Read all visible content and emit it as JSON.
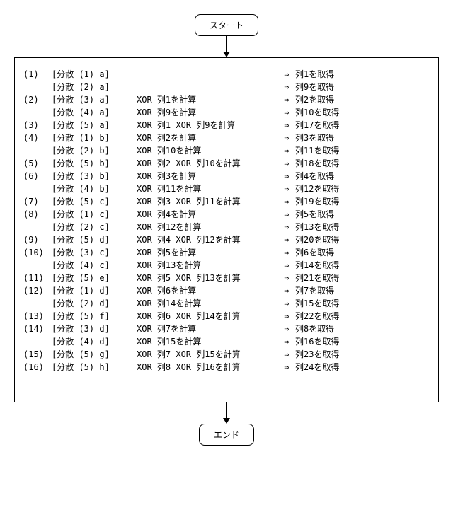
{
  "flowchart": {
    "start_label": "スタート",
    "end_label": "エンド",
    "arrow_glyph": "⇒"
  },
  "rows": [
    {
      "step": "(1)",
      "src": "[分散 (1) a]",
      "op": "",
      "res": "列1を取得"
    },
    {
      "step": "",
      "src": "[分散 (2) a]",
      "op": "",
      "res": "列9を取得"
    },
    {
      "step": "(2)",
      "src": "[分散 (3) a]",
      "op": "XOR 列1を計算",
      "res": "列2を取得"
    },
    {
      "step": "",
      "src": "[分散 (4) a]",
      "op": "XOR 列9を計算",
      "res": "列10を取得"
    },
    {
      "step": "(3)",
      "src": "[分散 (5) a]",
      "op": "XOR 列1 XOR 列9を計算",
      "res": "列17を取得"
    },
    {
      "step": "(4)",
      "src": "[分散 (1) b]",
      "op": "XOR 列2を計算",
      "res": "列3を取得"
    },
    {
      "step": "",
      "src": "[分散 (2) b]",
      "op": "XOR 列10を計算",
      "res": "列11を取得"
    },
    {
      "step": "(5)",
      "src": "[分散 (5) b]",
      "op": "XOR 列2 XOR 列10を計算",
      "res": "列18を取得"
    },
    {
      "step": "(6)",
      "src": "[分散 (3) b]",
      "op": "XOR 列3を計算",
      "res": "列4を取得"
    },
    {
      "step": "",
      "src": "[分散 (4) b]",
      "op": "XOR 列11を計算",
      "res": "列12を取得"
    },
    {
      "step": "(7)",
      "src": "[分散 (5) c]",
      "op": "XOR 列3 XOR 列11を計算",
      "res": "列19を取得"
    },
    {
      "step": "(8)",
      "src": "[分散 (1) c]",
      "op": "XOR 列4を計算",
      "res": "列5を取得"
    },
    {
      "step": "",
      "src": "[分散 (2) c]",
      "op": "XOR 列12を計算",
      "res": "列13を取得"
    },
    {
      "step": "(9)",
      "src": "[分散 (5) d]",
      "op": "XOR 列4 XOR 列12を計算",
      "res": "列20を取得"
    },
    {
      "step": "(10)",
      "src": "[分散 (3) c]",
      "op": "XOR 列5を計算",
      "res": "列6を取得"
    },
    {
      "step": "",
      "src": "[分散 (4) c]",
      "op": "XOR 列13を計算",
      "res": "列14を取得"
    },
    {
      "step": "(11)",
      "src": "[分散 (5) e]",
      "op": "XOR 列5 XOR 列13を計算",
      "res": "列21を取得"
    },
    {
      "step": "(12)",
      "src": "[分散 (1) d]",
      "op": "XOR 列6を計算",
      "res": "列7を取得"
    },
    {
      "step": "",
      "src": "[分散 (2) d]",
      "op": "XOR 列14を計算",
      "res": "列15を取得"
    },
    {
      "step": "(13)",
      "src": "[分散 (5) f]",
      "op": "XOR 列6 XOR 列14を計算",
      "res": "列22を取得"
    },
    {
      "step": "(14)",
      "src": "[分散 (3) d]",
      "op": "XOR 列7を計算",
      "res": "列8を取得"
    },
    {
      "step": "",
      "src": "[分散 (4) d]",
      "op": "XOR 列15を計算",
      "res": "列16を取得"
    },
    {
      "step": "(15)",
      "src": "[分散 (5) g]",
      "op": "XOR 列7 XOR 列15を計算",
      "res": "列23を取得"
    },
    {
      "step": "(16)",
      "src": "[分散 (5) h]",
      "op": "XOR 列8 XOR 列16を計算",
      "res": "列24を取得"
    }
  ]
}
